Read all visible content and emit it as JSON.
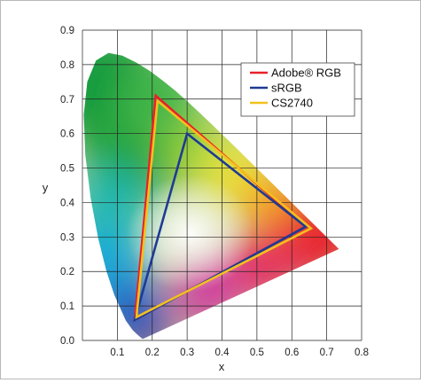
{
  "chart_data": {
    "type": "scatter",
    "title": "",
    "xlabel": "x",
    "ylabel": "y",
    "xlim": [
      0,
      0.8
    ],
    "ylim": [
      0,
      0.9
    ],
    "x_ticks": [
      "0.1",
      "0.2",
      "0.3",
      "0.4",
      "0.5",
      "0.6",
      "0.7",
      "0.8"
    ],
    "y_ticks": [
      "0.0",
      "0.1",
      "0.2",
      "0.3",
      "0.4",
      "0.5",
      "0.6",
      "0.7",
      "0.8",
      "0.9"
    ],
    "grid": true,
    "legend_position": "top-right",
    "series": [
      {
        "name": "Adobe® RGB",
        "color": "#e8202a",
        "closed": true,
        "x": [
          0.64,
          0.21,
          0.15
        ],
        "y": [
          0.33,
          0.71,
          0.06
        ]
      },
      {
        "name": "sRGB",
        "color": "#1f3a93",
        "closed": true,
        "x": [
          0.64,
          0.3,
          0.15
        ],
        "y": [
          0.33,
          0.6,
          0.06
        ]
      },
      {
        "name": "CS2740",
        "color": "#f2c01e",
        "closed": true,
        "x": [
          0.655,
          0.215,
          0.155
        ],
        "y": [
          0.325,
          0.695,
          0.068
        ]
      }
    ],
    "spectral_locus": {
      "x": [
        0.1741,
        0.174,
        0.1738,
        0.1736,
        0.1733,
        0.1726,
        0.1714,
        0.1689,
        0.1644,
        0.1566,
        0.144,
        0.1241,
        0.0913,
        0.0687,
        0.0454,
        0.0235,
        0.0082,
        0.0039,
        0.0139,
        0.0389,
        0.0743,
        0.1142,
        0.1547,
        0.1929,
        0.2296,
        0.2658,
        0.3016,
        0.3373,
        0.3731,
        0.4087,
        0.4441,
        0.4788,
        0.5125,
        0.5448,
        0.5752,
        0.6029,
        0.627,
        0.6482,
        0.6658,
        0.6801,
        0.6915,
        0.7006,
        0.7079,
        0.714,
        0.719,
        0.723,
        0.726,
        0.7283,
        0.73,
        0.7347
      ],
      "y": [
        0.005,
        0.005,
        0.0049,
        0.0049,
        0.0048,
        0.0048,
        0.0051,
        0.0069,
        0.0109,
        0.0177,
        0.0297,
        0.0578,
        0.1327,
        0.2007,
        0.295,
        0.4127,
        0.5384,
        0.6548,
        0.7502,
        0.812,
        0.8338,
        0.8262,
        0.8059,
        0.7816,
        0.7543,
        0.7243,
        0.6923,
        0.6589,
        0.6245,
        0.5896,
        0.5547,
        0.5202,
        0.4866,
        0.4544,
        0.4242,
        0.3965,
        0.3725,
        0.3514,
        0.334,
        0.3197,
        0.3083,
        0.2993,
        0.292,
        0.2859,
        0.2809,
        0.277,
        0.274,
        0.2717,
        0.27,
        0.2653
      ]
    }
  }
}
